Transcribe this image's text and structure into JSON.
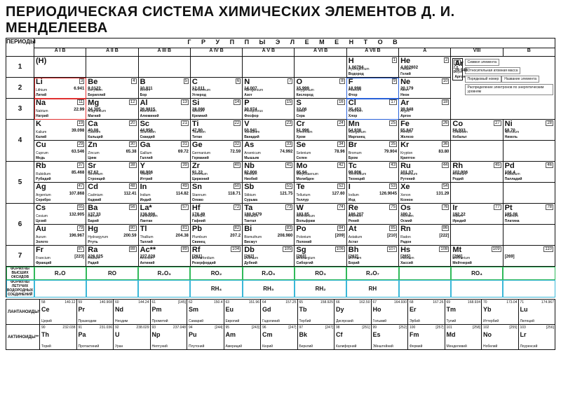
{
  "title": "ПЕРИОДИЧЕСКАЯ СИСТЕМА ХИМИЧЕСКИХ ЭЛЕМЕНТОВ Д. И. МЕНДЕЛЕЕВА",
  "periods_label": "ПЕРИОДЫ",
  "groups_label": "Г Р У П П Ы   Э Л Е М Е Н Т О В",
  "subheaders": [
    "A   I   B",
    "A   II   B",
    "A   III   B",
    "A   IV   B",
    "A   V   B",
    "A   VI   B",
    "A   VII   B",
    "A",
    "VIII",
    "B"
  ],
  "formula_labels": {
    "oxides": "ФОРМУЛЫ ВЫСШИХ ОКСИДОВ",
    "hydrides": "ФОРМУЛЫ ЛЕТУЧИХ ВОДОРОДНЫХ СОЕДИНЕНИЙ"
  },
  "oxides": [
    "R₂O",
    "RO",
    "R₂O₃",
    "RO₂",
    "R₂O₅",
    "RO₃",
    "R₂O₇",
    "",
    "RO₄",
    ""
  ],
  "hydrides": [
    "",
    "",
    "",
    "RH₄",
    "RH₃",
    "RH₂",
    "RH",
    "",
    "",
    ""
  ],
  "series": {
    "lan_label": "ЛАНТАНОИДЫ*",
    "act_label": "АКТИНОИДЫ**"
  },
  "legend": {
    "lines": [
      "Символ элемента",
      "Относительная атомная масса",
      "Порядковый номер",
      "Название элемента",
      "Распределение электронов по энергетическим уровням"
    ],
    "ex": {
      "sym": "Ar",
      "z": "18",
      "m": "39.948",
      "n1": "Argon",
      "n2": "Аргон",
      "cfg": "2 8 8"
    }
  },
  "rows": {
    "p1": [
      {
        "sym": "(H)",
        "z": "",
        "m": "",
        "n1": "",
        "n2": ""
      },
      null,
      null,
      null,
      null,
      null,
      {
        "sym": "H",
        "z": "1",
        "m": "1.00794",
        "n1": "Hydrogenium",
        "n2": "Водород"
      },
      {
        "sym": "He",
        "z": "2",
        "m": "4.002602",
        "n1": "Helium",
        "n2": "Гелий"
      },
      "LEGEND",
      null
    ],
    "p2": [
      {
        "sym": "Li",
        "z": "3",
        "m": "6.941",
        "n1": "Lithium",
        "n2": "Литий",
        "hl": "red"
      },
      {
        "sym": "Be",
        "z": "4",
        "m": "9.0122",
        "n1": "Beryllium",
        "n2": "Бериллий"
      },
      {
        "sym": "B",
        "z": "5",
        "m": "10.811",
        "n1": "Borum",
        "n2": "Бор"
      },
      {
        "sym": "C",
        "z": "6",
        "m": "12.011",
        "n1": "Carboneum",
        "n2": "Углерод"
      },
      {
        "sym": "N",
        "z": "7",
        "m": "14.007",
        "n1": "Nitrogenium",
        "n2": "Азот"
      },
      {
        "sym": "O",
        "z": "8",
        "m": "15.999",
        "n1": "Oxygenium",
        "n2": "Кислород"
      },
      {
        "sym": "F",
        "z": "9",
        "m": "18.998",
        "n1": "Fluorum",
        "n2": "Фтор",
        "hl": "blue"
      },
      {
        "sym": "Ne",
        "z": "10",
        "m": "20.179",
        "n1": "Neon",
        "n2": "Неон"
      },
      "LEGEND",
      null
    ],
    "p3": [
      {
        "sym": "Na",
        "z": "11",
        "m": "22.99",
        "n1": "Natrium",
        "n2": "Натрий",
        "hl": "red"
      },
      {
        "sym": "Mg",
        "z": "12",
        "m": "24.305",
        "n1": "Magnesium",
        "n2": "Магний"
      },
      {
        "sym": "Al",
        "z": "13",
        "m": "26.9815",
        "n1": "Aluminium",
        "n2": "Алюминий"
      },
      {
        "sym": "Si",
        "z": "14",
        "m": "28.086",
        "n1": "Silicium",
        "n2": "Кремний"
      },
      {
        "sym": "P",
        "z": "15",
        "m": "30.974",
        "n1": "Phosphorus",
        "n2": "Фосфор"
      },
      {
        "sym": "S",
        "z": "16",
        "m": "32.06",
        "n1": "Sulfur",
        "n2": "Сера"
      },
      {
        "sym": "Cl",
        "z": "17",
        "m": "35.453",
        "n1": "Chlorium",
        "n2": "Хлор",
        "hl": "blue"
      },
      {
        "sym": "Ar",
        "z": "18",
        "m": "39.948",
        "n1": "Argon",
        "n2": "Аргон"
      },
      "LEGEND",
      null
    ],
    "p4a": [
      {
        "sym": "K",
        "z": "19",
        "m": "39.098",
        "n1": "Kalium",
        "n2": "Калий"
      },
      {
        "sym": "Ca",
        "z": "20",
        "m": "40.08",
        "n1": "Calcium",
        "n2": "Кальций"
      },
      {
        "sym": "Sc",
        "z": "21",
        "m": "44.956",
        "n1": "Scandium",
        "n2": "Скандий"
      },
      {
        "sym": "Ti",
        "z": "22",
        "m": "47.90",
        "n1": "Titanium",
        "n2": "Титан"
      },
      {
        "sym": "V",
        "z": "23",
        "m": "50.941",
        "n1": "Vanadium",
        "n2": "Ванадий"
      },
      {
        "sym": "Cr",
        "z": "24",
        "m": "51.996",
        "n1": "Chromium",
        "n2": "Хром"
      },
      {
        "sym": "Mn",
        "z": "25",
        "m": "54.938",
        "n1": "Manganum",
        "n2": "Марганец"
      },
      {
        "sym": "Fe",
        "z": "26",
        "m": "55.847",
        "n1": "Ferrum",
        "n2": "Железо"
      },
      {
        "sym": "Co",
        "z": "27",
        "m": "58.933",
        "n1": "Cobaltum",
        "n2": "Кобальт"
      },
      {
        "sym": "Ni",
        "z": "28",
        "m": "58.70",
        "n1": "Niccolum",
        "n2": "Никель"
      }
    ],
    "p4b": [
      {
        "sym": "Cu",
        "z": "29",
        "m": "63.546",
        "n1": "Cuprum",
        "n2": "Медь"
      },
      {
        "sym": "Zn",
        "z": "30",
        "m": "65.38",
        "n1": "Zincum",
        "n2": "Цинк"
      },
      {
        "sym": "Ga",
        "z": "31",
        "m": "69.72",
        "n1": "Gallium",
        "n2": "Галлий"
      },
      {
        "sym": "Ge",
        "z": "32",
        "m": "72.59",
        "n1": "Germanium",
        "n2": "Германий"
      },
      {
        "sym": "As",
        "z": "33",
        "m": "74.992",
        "n1": "Arsenicum",
        "n2": "Мышьяк"
      },
      {
        "sym": "Se",
        "z": "34",
        "m": "78.96",
        "n1": "Selenium",
        "n2": "Селен"
      },
      {
        "sym": "Br",
        "z": "35",
        "m": "79.904",
        "n1": "Bromum",
        "n2": "Бром"
      },
      {
        "sym": "Kr",
        "z": "36",
        "m": "83.80",
        "n1": "Krypton",
        "n2": "Криптон"
      },
      null,
      null
    ],
    "p5a": [
      {
        "sym": "Rb",
        "z": "37",
        "m": "85.468",
        "n1": "Rubidium",
        "n2": "Рубидий"
      },
      {
        "sym": "Sr",
        "z": "38",
        "m": "87.62",
        "n1": "Strontium",
        "n2": "Стронций"
      },
      {
        "sym": "Y",
        "z": "39",
        "m": "88.906",
        "n1": "Yttrium",
        "n2": "Иттрий"
      },
      {
        "sym": "Zr",
        "z": "40",
        "m": "91.22",
        "n1": "Zirconium",
        "n2": "Цирконий"
      },
      {
        "sym": "Nb",
        "z": "41",
        "m": "92.906",
        "n1": "Niobium",
        "n2": "Ниобий"
      },
      {
        "sym": "Mo",
        "z": "42",
        "m": "95.94",
        "n1": "Molybdaenum",
        "n2": "Молибден"
      },
      {
        "sym": "Tc",
        "z": "43",
        "m": "98.906",
        "n1": "Technetium",
        "n2": "Технеций"
      },
      {
        "sym": "Ru",
        "z": "44",
        "m": "101.07",
        "n1": "Ruthenium",
        "n2": "Рутений"
      },
      {
        "sym": "Rh",
        "z": "45",
        "m": "102.906",
        "n1": "Rhodium",
        "n2": "Родий"
      },
      {
        "sym": "Pd",
        "z": "46",
        "m": "106.4",
        "n1": "Palladium",
        "n2": "Палладий"
      }
    ],
    "p5b": [
      {
        "sym": "Ag",
        "z": "47",
        "m": "107.868",
        "n1": "Argentum",
        "n2": "Серебро"
      },
      {
        "sym": "Cd",
        "z": "48",
        "m": "112.41",
        "n1": "Cadmium",
        "n2": "Кадмий"
      },
      {
        "sym": "In",
        "z": "49",
        "m": "114.82",
        "n1": "Indium",
        "n2": "Индий"
      },
      {
        "sym": "Sn",
        "z": "50",
        "m": "118.71",
        "n1": "Stannum",
        "n2": "Олово"
      },
      {
        "sym": "Sb",
        "z": "51",
        "m": "121.75",
        "n1": "Stibium",
        "n2": "Сурьма"
      },
      {
        "sym": "Te",
        "z": "52",
        "m": "127.60",
        "n1": "Tellurium",
        "n2": "Теллур"
      },
      {
        "sym": "I",
        "z": "53",
        "m": "126.9045",
        "n1": "Iodium",
        "n2": "Иод"
      },
      {
        "sym": "Xe",
        "z": "54",
        "m": "131.29",
        "n1": "Xenon",
        "n2": "Ксенон"
      },
      null,
      null
    ],
    "p6a": [
      {
        "sym": "Cs",
        "z": "55",
        "m": "132.905",
        "n1": "Cesium",
        "n2": "Цезий"
      },
      {
        "sym": "Ba",
        "z": "56",
        "m": "137.33",
        "n1": "Barium",
        "n2": "Барий"
      },
      {
        "sym": "La*",
        "z": "57",
        "m": "138.906",
        "n1": "Lanthanum",
        "n2": "Лантан"
      },
      {
        "sym": "Hf",
        "z": "72",
        "m": "178.49",
        "n1": "Hafnium",
        "n2": "Гафний"
      },
      {
        "sym": "Ta",
        "z": "73",
        "m": "180.9479",
        "n1": "Tantalum",
        "n2": "Тантал"
      },
      {
        "sym": "W",
        "z": "74",
        "m": "183.85",
        "n1": "Wolframium",
        "n2": "Вольфрам"
      },
      {
        "sym": "Re",
        "z": "75",
        "m": "186.207",
        "n1": "Rhenium",
        "n2": "Рений"
      },
      {
        "sym": "Os",
        "z": "76",
        "m": "190.2",
        "n1": "Osmium",
        "n2": "Осмий"
      },
      {
        "sym": "Ir",
        "z": "77",
        "m": "192.22",
        "n1": "Iridium",
        "n2": "Иридий"
      },
      {
        "sym": "Pt",
        "z": "78",
        "m": "195.08",
        "n1": "Platinum",
        "n2": "Платина"
      }
    ],
    "p6b": [
      {
        "sym": "Au",
        "z": "79",
        "m": "196.967",
        "n1": "Aurum",
        "n2": "Золото"
      },
      {
        "sym": "Hg",
        "z": "80",
        "m": "200.59",
        "n1": "Hydrargyrum",
        "n2": "Ртуть"
      },
      {
        "sym": "Tl",
        "z": "81",
        "m": "204.38",
        "n1": "Thallium",
        "n2": "Таллий"
      },
      {
        "sym": "Pb",
        "z": "82",
        "m": "207.2",
        "n1": "Plumbum",
        "n2": "Свинец"
      },
      {
        "sym": "Bi",
        "z": "83",
        "m": "208.980",
        "n1": "Bismuthum",
        "n2": "Висмут"
      },
      {
        "sym": "Po",
        "z": "84",
        "m": "[209]",
        "n1": "Polonium",
        "n2": "Полоний"
      },
      {
        "sym": "At",
        "z": "85",
        "m": "[210]",
        "n1": "Astatium",
        "n2": "Астат"
      },
      {
        "sym": "Rn",
        "z": "86",
        "m": "[222]",
        "n1": "Radon",
        "n2": "Радон"
      },
      null,
      null
    ],
    "p7": [
      {
        "sym": "Fr",
        "z": "87",
        "m": "[223]",
        "n1": "Francium",
        "n2": "Франций"
      },
      {
        "sym": "Ra",
        "z": "88",
        "m": "226.025",
        "n1": "Radium",
        "n2": "Радий"
      },
      {
        "sym": "Ac**",
        "z": "89",
        "m": "227.028",
        "n1": "Actinium",
        "n2": "Актиний"
      },
      {
        "sym": "Rf",
        "z": "104",
        "m": "[261]",
        "n1": "Rutherfordium",
        "n2": "Резерфордий"
      },
      {
        "sym": "Db",
        "z": "105",
        "m": "[262]",
        "n1": "Dubnium",
        "n2": "Дубний"
      },
      {
        "sym": "Sg",
        "z": "106",
        "m": "[263]",
        "n1": "Seaborgium",
        "n2": "Сиборгий"
      },
      {
        "sym": "Bh",
        "z": "107",
        "m": "[262]",
        "n1": "Bohrium",
        "n2": "Борий"
      },
      {
        "sym": "Hs",
        "z": "108",
        "m": "[265]",
        "n1": "Hassium",
        "n2": "Хассий"
      },
      {
        "sym": "Mt",
        "z": "109",
        "m": "[266]",
        "n1": "Meitnerium",
        "n2": "Мейтнерий"
      },
      {
        "sym": "",
        "z": "110",
        "m": "[269]",
        "n1": "",
        "n2": ""
      }
    ]
  },
  "lan": [
    {
      "sym": "Ce",
      "z": "58",
      "m": "140.12",
      "n2": "Церий"
    },
    {
      "sym": "Pr",
      "z": "59",
      "m": "140.908",
      "n2": "Празеодим"
    },
    {
      "sym": "Nd",
      "z": "60",
      "m": "144.24",
      "n2": "Неодим"
    },
    {
      "sym": "Pm",
      "z": "61",
      "m": "[145]",
      "n2": "Прометий"
    },
    {
      "sym": "Sm",
      "z": "62",
      "m": "150.4",
      "n2": "Самарий"
    },
    {
      "sym": "Eu",
      "z": "63",
      "m": "151.96",
      "n2": "Европий"
    },
    {
      "sym": "Gd",
      "z": "64",
      "m": "157.25",
      "n2": "Гадолиний"
    },
    {
      "sym": "Tb",
      "z": "65",
      "m": "158.925",
      "n2": "Тербий"
    },
    {
      "sym": "Dy",
      "z": "66",
      "m": "162.50",
      "n2": "Диспрозий"
    },
    {
      "sym": "Ho",
      "z": "67",
      "m": "164.930",
      "n2": "Гольмий"
    },
    {
      "sym": "Er",
      "z": "68",
      "m": "167.26",
      "n2": "Эрбий"
    },
    {
      "sym": "Tm",
      "z": "69",
      "m": "168.934",
      "n2": "Тулий"
    },
    {
      "sym": "Yb",
      "z": "70",
      "m": "173.04",
      "n2": "Иттербий"
    },
    {
      "sym": "Lu",
      "z": "71",
      "m": "174.967",
      "n2": "Лютеций"
    }
  ],
  "act": [
    {
      "sym": "Th",
      "z": "90",
      "m": "232.038",
      "n2": "Торий"
    },
    {
      "sym": "Pa",
      "z": "91",
      "m": "231.036",
      "n2": "Протактиний"
    },
    {
      "sym": "U",
      "z": "92",
      "m": "238.029",
      "n2": "Уран"
    },
    {
      "sym": "Np",
      "z": "93",
      "m": "237.048",
      "n2": "Нептуний"
    },
    {
      "sym": "Pu",
      "z": "94",
      "m": "[244]",
      "n2": "Плутоний"
    },
    {
      "sym": "Am",
      "z": "95",
      "m": "[243]",
      "n2": "Америций"
    },
    {
      "sym": "Cm",
      "z": "96",
      "m": "[247]",
      "n2": "Кюрий"
    },
    {
      "sym": "Bk",
      "z": "97",
      "m": "[247]",
      "n2": "Берклий"
    },
    {
      "sym": "Cf",
      "z": "98",
      "m": "[251]",
      "n2": "Калифорний"
    },
    {
      "sym": "Es",
      "z": "99",
      "m": "[252]",
      "n2": "Эйнштейний"
    },
    {
      "sym": "Fm",
      "z": "100",
      "m": "[257]",
      "n2": "Фермий"
    },
    {
      "sym": "Md",
      "z": "101",
      "m": "[258]",
      "n2": "Менделевий"
    },
    {
      "sym": "No",
      "z": "102",
      "m": "[255]",
      "n2": "Нобелий"
    },
    {
      "sym": "Lr",
      "z": "103",
      "m": "[256]",
      "n2": "Лоуренсий"
    }
  ],
  "highlight_colors": {
    "red": "#e03030",
    "blue": "#2860d8",
    "green": "#2fb95a",
    "cyan": "#3ab8d8"
  }
}
